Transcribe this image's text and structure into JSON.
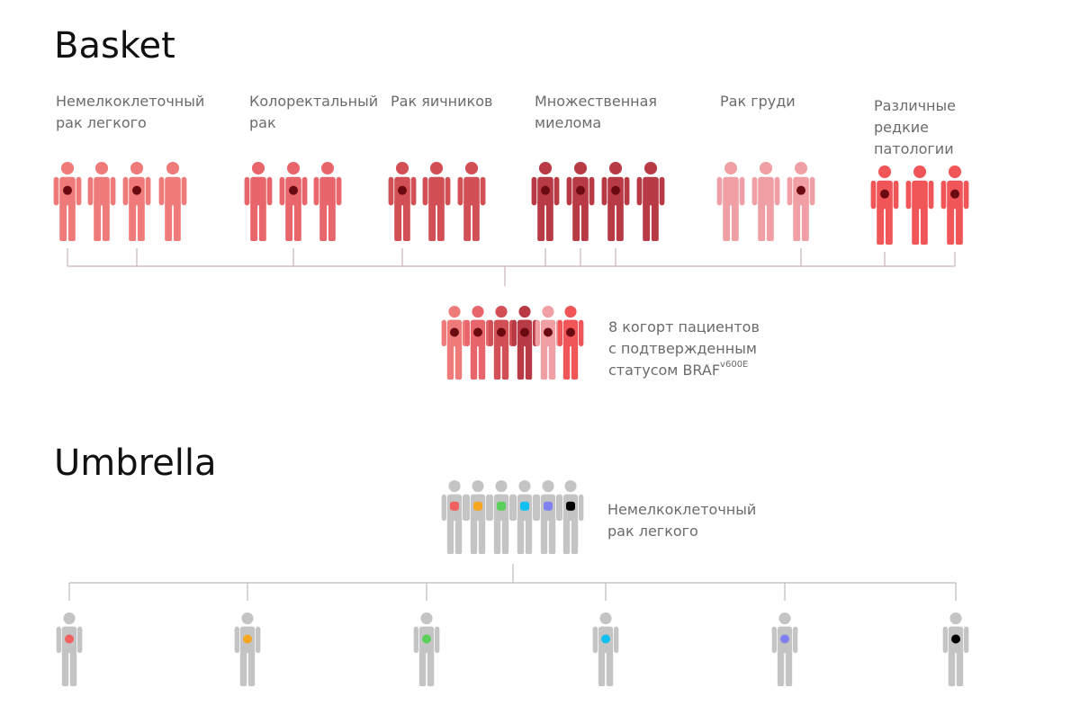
{
  "basket": {
    "title": "Basket",
    "groups": [
      {
        "label": [
          "Немелкоклеточный",
          "рак легкого"
        ]
      },
      {
        "label": [
          "Колоректальный",
          "рак"
        ]
      },
      {
        "label": [
          "Рак яичников"
        ]
      },
      {
        "label": [
          "Множественная",
          "миелома"
        ]
      },
      {
        "label": [
          "Рак груди"
        ]
      },
      {
        "label": [
          "Различные",
          "редкие",
          "патологии"
        ]
      }
    ],
    "summary": {
      "lines": [
        "8 когорт пациентов",
        "с подтвержденным",
        "статусом BRAF"
      ],
      "superscript": "v600E"
    }
  },
  "umbrella": {
    "title": "Umbrella",
    "label": [
      "Немелкоклеточный",
      "рак легкого"
    ]
  }
}
